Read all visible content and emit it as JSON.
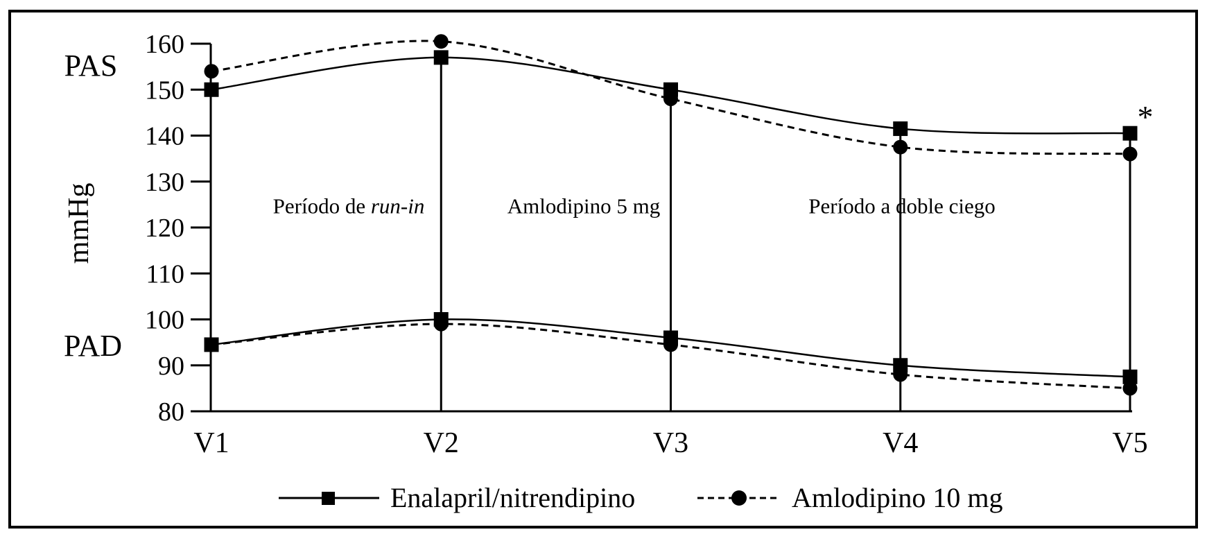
{
  "figure": {
    "background": "#ffffff",
    "line_color": "#000000"
  },
  "labels": {
    "pas": "PAS",
    "mmhg": "mmHg",
    "pad": "PAD",
    "asterisk": "*"
  },
  "periods": [
    {
      "prefix": "Período de ",
      "italic": "run-in"
    },
    {
      "label": "Amlodipino 5 mg"
    },
    {
      "label": "Período a doble ciego"
    }
  ],
  "legend": [
    {
      "label": "Enalapril/nitrendipino",
      "line": "solid",
      "marker": "square"
    },
    {
      "label": "Amlodipino 10 mg",
      "line": "dashed",
      "marker": "circle"
    }
  ],
  "chart_data": {
    "type": "line",
    "categories": [
      "V1",
      "V2",
      "V3",
      "V4",
      "V5"
    ],
    "ylabel": "mmHg",
    "ylim": [
      80,
      160
    ],
    "yticks": [
      160,
      150,
      140,
      130,
      120,
      110,
      100,
      90,
      80
    ],
    "grid": false,
    "legend_position": "bottom",
    "series": [
      {
        "name": "PAS Enalapril/nitrendipino",
        "group": "PAS",
        "style": "solid",
        "marker": "square",
        "values": [
          150,
          157,
          150,
          141.5,
          140.5
        ]
      },
      {
        "name": "PAS Amlodipino 10 mg",
        "group": "PAS",
        "style": "dashed",
        "marker": "circle",
        "values": [
          154,
          160.5,
          148,
          137.5,
          136
        ]
      },
      {
        "name": "PAD Enalapril/nitrendipino",
        "group": "PAD",
        "style": "solid",
        "marker": "square",
        "values": [
          94.5,
          100,
          96,
          90,
          87.5
        ]
      },
      {
        "name": "PAD Amlodipino 10 mg",
        "group": "PAD",
        "style": "dashed",
        "marker": "circle",
        "values": [
          94.5,
          99,
          94.5,
          88,
          85
        ]
      }
    ],
    "event_lines_at": [
      "V2",
      "V3",
      "V4",
      "V5"
    ],
    "annotations": [
      {
        "text": "Período de run-in",
        "between": [
          "V1",
          "V2"
        ]
      },
      {
        "text": "Amlodipino 5 mg",
        "between": [
          "V2",
          "V3"
        ]
      },
      {
        "text": "Período a doble ciego",
        "between": [
          "V3",
          "V5"
        ]
      }
    ],
    "asterisk": {
      "category": "V5",
      "series": "PAS Enalapril/nitrendipino",
      "symbol": "*"
    }
  }
}
